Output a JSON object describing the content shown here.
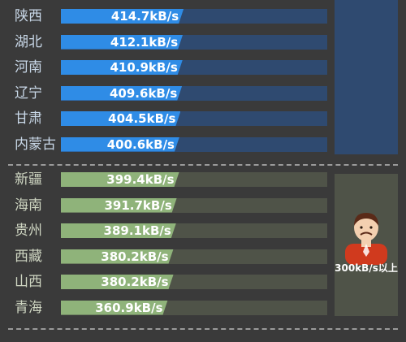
{
  "chart_data": {
    "type": "bar",
    "orientation": "horizontal",
    "unit": "kB/s",
    "groups": [
      {
        "color": "#2f8ce6",
        "track_color": "#2f4a70",
        "categories": [
          "陕西",
          "湖北",
          "河南",
          "辽宁",
          "甘肃",
          "内蒙古"
        ],
        "values": [
          414.7,
          412.1,
          410.9,
          409.6,
          404.5,
          400.6
        ],
        "value_labels": [
          "414.7kB/s",
          "412.1kB/s",
          "410.9kB/s",
          "409.6kB/s",
          "404.5kB/s",
          "400.6kB/s"
        ]
      },
      {
        "color": "#8fb37a",
        "track_color": "#4f5348",
        "categories": [
          "新疆",
          "海南",
          "贵州",
          "西藏",
          "山西",
          "青海"
        ],
        "values": [
          399.4,
          391.7,
          389.1,
          380.2,
          380.2,
          360.9
        ],
        "value_labels": [
          "399.4kB/s",
          "391.7kB/s",
          "389.1kB/s",
          "380.2kB/s",
          "380.2kB/s",
          "360.9kB/s"
        ],
        "tier_label": "300kB/s以上"
      }
    ],
    "xlim": [
      0,
      900
    ],
    "grid": false,
    "legend": "none"
  },
  "colors": {
    "background": "#3a3a3a",
    "blue_panel": "#2f4a70",
    "green_panel": "#4f5348",
    "mascot_shirt": "#d03a1e",
    "mascot_skin": "#f3d0b0",
    "mascot_hair": "#5a2a18"
  },
  "icons": {
    "tier_icon": "person-avatar-icon"
  }
}
